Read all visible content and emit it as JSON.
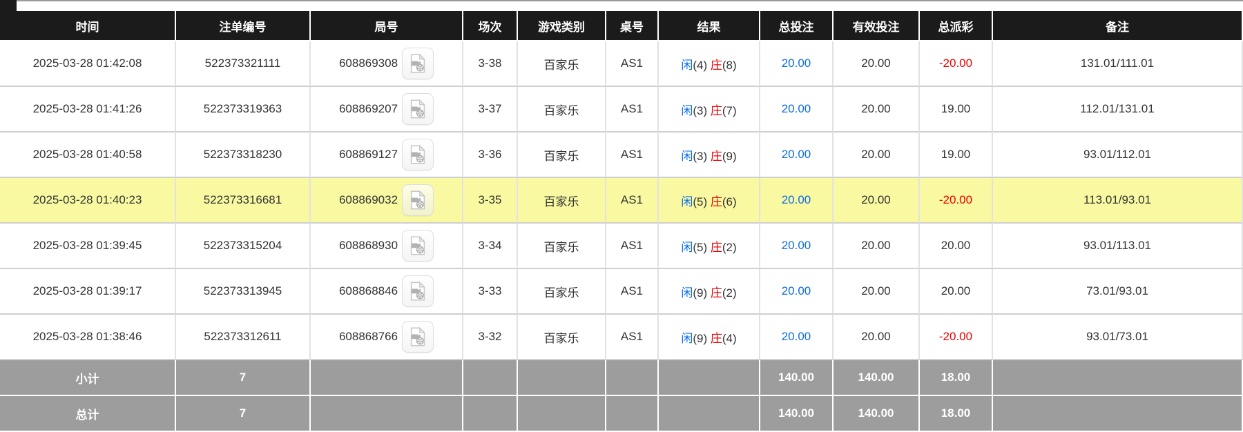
{
  "table": {
    "columns": [
      {
        "key": "time",
        "label": "时间"
      },
      {
        "key": "bet_id",
        "label": "注单编号"
      },
      {
        "key": "round_id",
        "label": "局号"
      },
      {
        "key": "session",
        "label": "场次"
      },
      {
        "key": "game",
        "label": "游戏类别"
      },
      {
        "key": "table_no",
        "label": "桌号"
      },
      {
        "key": "result",
        "label": "结果"
      },
      {
        "key": "total_bet",
        "label": "总投注"
      },
      {
        "key": "valid_bet",
        "label": "有效投注"
      },
      {
        "key": "payout",
        "label": "总派彩"
      },
      {
        "key": "remark",
        "label": "备注"
      }
    ],
    "rows": [
      {
        "time": "2025-03-28 01:42:08",
        "bet_id": "522373321111",
        "round_id": "608869308",
        "session": "3-38",
        "game": "百家乐",
        "table_no": "AS1",
        "result": {
          "player_label": "闲",
          "player_val": "(4)",
          "banker_label": "庄",
          "banker_val": "(8)"
        },
        "total_bet": "20.00",
        "valid_bet": "20.00",
        "payout": "-20.00",
        "remark": "131.01/111.01",
        "highlighted": false
      },
      {
        "time": "2025-03-28 01:41:26",
        "bet_id": "522373319363",
        "round_id": "608869207",
        "session": "3-37",
        "game": "百家乐",
        "table_no": "AS1",
        "result": {
          "player_label": "闲",
          "player_val": "(3)",
          "banker_label": "庄",
          "banker_val": "(7)"
        },
        "total_bet": "20.00",
        "valid_bet": "20.00",
        "payout": "19.00",
        "remark": "112.01/131.01",
        "highlighted": false
      },
      {
        "time": "2025-03-28 01:40:58",
        "bet_id": "522373318230",
        "round_id": "608869127",
        "session": "3-36",
        "game": "百家乐",
        "table_no": "AS1",
        "result": {
          "player_label": "闲",
          "player_val": "(3)",
          "banker_label": "庄",
          "banker_val": "(9)"
        },
        "total_bet": "20.00",
        "valid_bet": "20.00",
        "payout": "19.00",
        "remark": "93.01/112.01",
        "highlighted": false
      },
      {
        "time": "2025-03-28 01:40:23",
        "bet_id": "522373316681",
        "round_id": "608869032",
        "session": "3-35",
        "game": "百家乐",
        "table_no": "AS1",
        "result": {
          "player_label": "闲",
          "player_val": "(5)",
          "banker_label": "庄",
          "banker_val": "(6)"
        },
        "total_bet": "20.00",
        "valid_bet": "20.00",
        "payout": "-20.00",
        "remark": "113.01/93.01",
        "highlighted": true
      },
      {
        "time": "2025-03-28 01:39:45",
        "bet_id": "522373315204",
        "round_id": "608868930",
        "session": "3-34",
        "game": "百家乐",
        "table_no": "AS1",
        "result": {
          "player_label": "闲",
          "player_val": "(5)",
          "banker_label": "庄",
          "banker_val": "(2)"
        },
        "total_bet": "20.00",
        "valid_bet": "20.00",
        "payout": "20.00",
        "remark": "93.01/113.01",
        "highlighted": false
      },
      {
        "time": "2025-03-28 01:39:17",
        "bet_id": "522373313945",
        "round_id": "608868846",
        "session": "3-33",
        "game": "百家乐",
        "table_no": "AS1",
        "result": {
          "player_label": "闲",
          "player_val": "(9)",
          "banker_label": "庄",
          "banker_val": "(2)"
        },
        "total_bet": "20.00",
        "valid_bet": "20.00",
        "payout": "20.00",
        "remark": "73.01/93.01",
        "highlighted": false
      },
      {
        "time": "2025-03-28 01:38:46",
        "bet_id": "522373312611",
        "round_id": "608868766",
        "session": "3-32",
        "game": "百家乐",
        "table_no": "AS1",
        "result": {
          "player_label": "闲",
          "player_val": "(9)",
          "banker_label": "庄",
          "banker_val": "(4)"
        },
        "total_bet": "20.00",
        "valid_bet": "20.00",
        "payout": "-20.00",
        "remark": "93.01/73.01",
        "highlighted": false
      }
    ],
    "summary_rows": [
      {
        "label": "小计",
        "bet_count": "7",
        "total_bet": "140.00",
        "valid_bet": "140.00",
        "payout": "18.00"
      },
      {
        "label": "总计",
        "bet_count": "7",
        "total_bet": "140.00",
        "valid_bet": "140.00",
        "payout": "18.00"
      }
    ]
  },
  "icons": {
    "video_replay": "video-file-icon"
  },
  "colors": {
    "header_bg": "#1b1b1b",
    "row_highlight": "#f9f9a2",
    "summary_bg": "#9d9d9d",
    "bet_blue": "#0b6ce8",
    "loss_red": "#ee0000",
    "text": "#333333"
  }
}
